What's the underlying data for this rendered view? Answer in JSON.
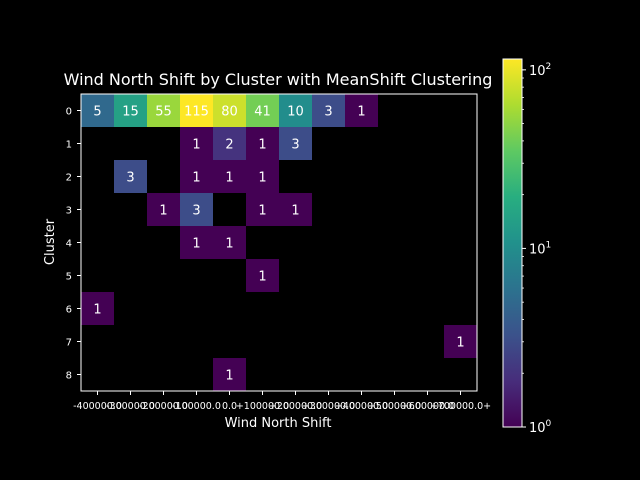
{
  "chart_data": {
    "type": "heatmap",
    "title": "Wind North Shift by Cluster with MeanShift Clustering",
    "xlabel": "Wind North Shift",
    "ylabel": "Cluster",
    "x_tick_labels": [
      "-400000.0",
      "-300000.0",
      "-200000.0",
      "-100000.0",
      "0.0",
      "+100000.0",
      "+200000.0",
      "+300000.0",
      "+400000.0",
      "+500000.0",
      "+600000.0",
      "+700000.0+"
    ],
    "y_tick_labels": [
      "0",
      "1",
      "2",
      "3",
      "4",
      "5",
      "6",
      "7",
      "8"
    ],
    "colorscale": "viridis",
    "color_scale_type": "log",
    "color_range": [
      1,
      115
    ],
    "colorbar_tick_labels": [
      "10^0",
      "10^1",
      "10^2"
    ],
    "cells": [
      {
        "row": 0,
        "col": 0,
        "value": 5
      },
      {
        "row": 0,
        "col": 1,
        "value": 15
      },
      {
        "row": 0,
        "col": 2,
        "value": 55
      },
      {
        "row": 0,
        "col": 3,
        "value": 115
      },
      {
        "row": 0,
        "col": 4,
        "value": 80
      },
      {
        "row": 0,
        "col": 5,
        "value": 41
      },
      {
        "row": 0,
        "col": 6,
        "value": 10
      },
      {
        "row": 0,
        "col": 7,
        "value": 3
      },
      {
        "row": 0,
        "col": 8,
        "value": 1
      },
      {
        "row": 1,
        "col": 3,
        "value": 1
      },
      {
        "row": 1,
        "col": 4,
        "value": 2
      },
      {
        "row": 1,
        "col": 5,
        "value": 1
      },
      {
        "row": 1,
        "col": 6,
        "value": 3
      },
      {
        "row": 2,
        "col": 1,
        "value": 3
      },
      {
        "row": 2,
        "col": 3,
        "value": 1
      },
      {
        "row": 2,
        "col": 4,
        "value": 1
      },
      {
        "row": 2,
        "col": 5,
        "value": 1
      },
      {
        "row": 3,
        "col": 2,
        "value": 1
      },
      {
        "row": 3,
        "col": 3,
        "value": 3
      },
      {
        "row": 3,
        "col": 5,
        "value": 1
      },
      {
        "row": 3,
        "col": 6,
        "value": 1
      },
      {
        "row": 4,
        "col": 3,
        "value": 1
      },
      {
        "row": 4,
        "col": 4,
        "value": 1
      },
      {
        "row": 5,
        "col": 5,
        "value": 1
      },
      {
        "row": 6,
        "col": 0,
        "value": 1
      },
      {
        "row": 7,
        "col": 11,
        "value": 1
      },
      {
        "row": 8,
        "col": 4,
        "value": 1
      }
    ]
  }
}
